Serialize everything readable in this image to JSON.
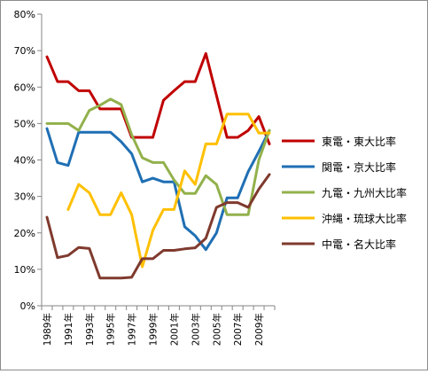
{
  "chart_data": {
    "type": "line",
    "y_ticks": [
      "0%",
      "10%",
      "20%",
      "30%",
      "40%",
      "50%",
      "60%",
      "70%",
      "80%"
    ],
    "ylim": [
      0,
      80
    ],
    "y_unit": "%",
    "grid": false,
    "legend_position": "right",
    "x": [
      1989,
      1990,
      1991,
      1992,
      1993,
      1994,
      1995,
      1996,
      1997,
      1998,
      1999,
      2000,
      2001,
      2002,
      2003,
      2004,
      2005,
      2006,
      2007,
      2008,
      2009,
      2010
    ],
    "x_tick_labels": [
      "1989年",
      "1991年",
      "1993年",
      "1995年",
      "1997年",
      "1999年",
      "2001年",
      "2003年",
      "2005年",
      "2007年",
      "2009年"
    ],
    "series": [
      {
        "name": "東電・東大比率",
        "color": "#c00000",
        "values": [
          68.3,
          61.5,
          61.5,
          59.0,
          59.0,
          54.0,
          54.0,
          54.0,
          46.2,
          46.2,
          46.2,
          56.4,
          59.0,
          61.5,
          61.5,
          69.2,
          57.7,
          46.2,
          46.2,
          48.1,
          51.9,
          44.4
        ]
      },
      {
        "name": "関電・京大比率",
        "color": "#1f6fb4",
        "values": [
          48.6,
          39.3,
          38.5,
          47.6,
          47.6,
          47.6,
          47.6,
          45.0,
          41.7,
          34.0,
          35.0,
          34.0,
          34.0,
          21.7,
          19.2,
          15.4,
          20.0,
          29.6,
          29.6,
          36.8,
          42.3,
          48.1
        ]
      },
      {
        "name": "九電・九州大比率",
        "color": "#92b14c",
        "values": [
          50.0,
          50.0,
          50.0,
          48.1,
          53.6,
          55.0,
          56.7,
          55.2,
          46.9,
          40.6,
          39.3,
          39.3,
          34.5,
          30.8,
          30.8,
          35.7,
          33.3,
          25.0,
          25.0,
          25.0,
          40.0,
          48.1
        ]
      },
      {
        "name": "沖縄・琉球大比率",
        "color": "#ffc000",
        "values": [
          null,
          null,
          26.4,
          33.3,
          31.0,
          25.0,
          25.0,
          31.0,
          25.0,
          10.7,
          20.7,
          26.4,
          26.4,
          37.0,
          33.3,
          44.4,
          44.4,
          52.6,
          52.6,
          52.6,
          47.4,
          47.4
        ]
      },
      {
        "name": "中電・名大比率",
        "color": "#7f3a2e",
        "values": [
          24.3,
          13.2,
          13.8,
          16.0,
          15.7,
          7.6,
          7.6,
          7.6,
          7.8,
          12.9,
          12.9,
          15.2,
          15.2,
          15.6,
          15.9,
          18.5,
          27.0,
          28.3,
          28.3,
          27.0,
          32.0,
          36.0
        ]
      }
    ]
  }
}
